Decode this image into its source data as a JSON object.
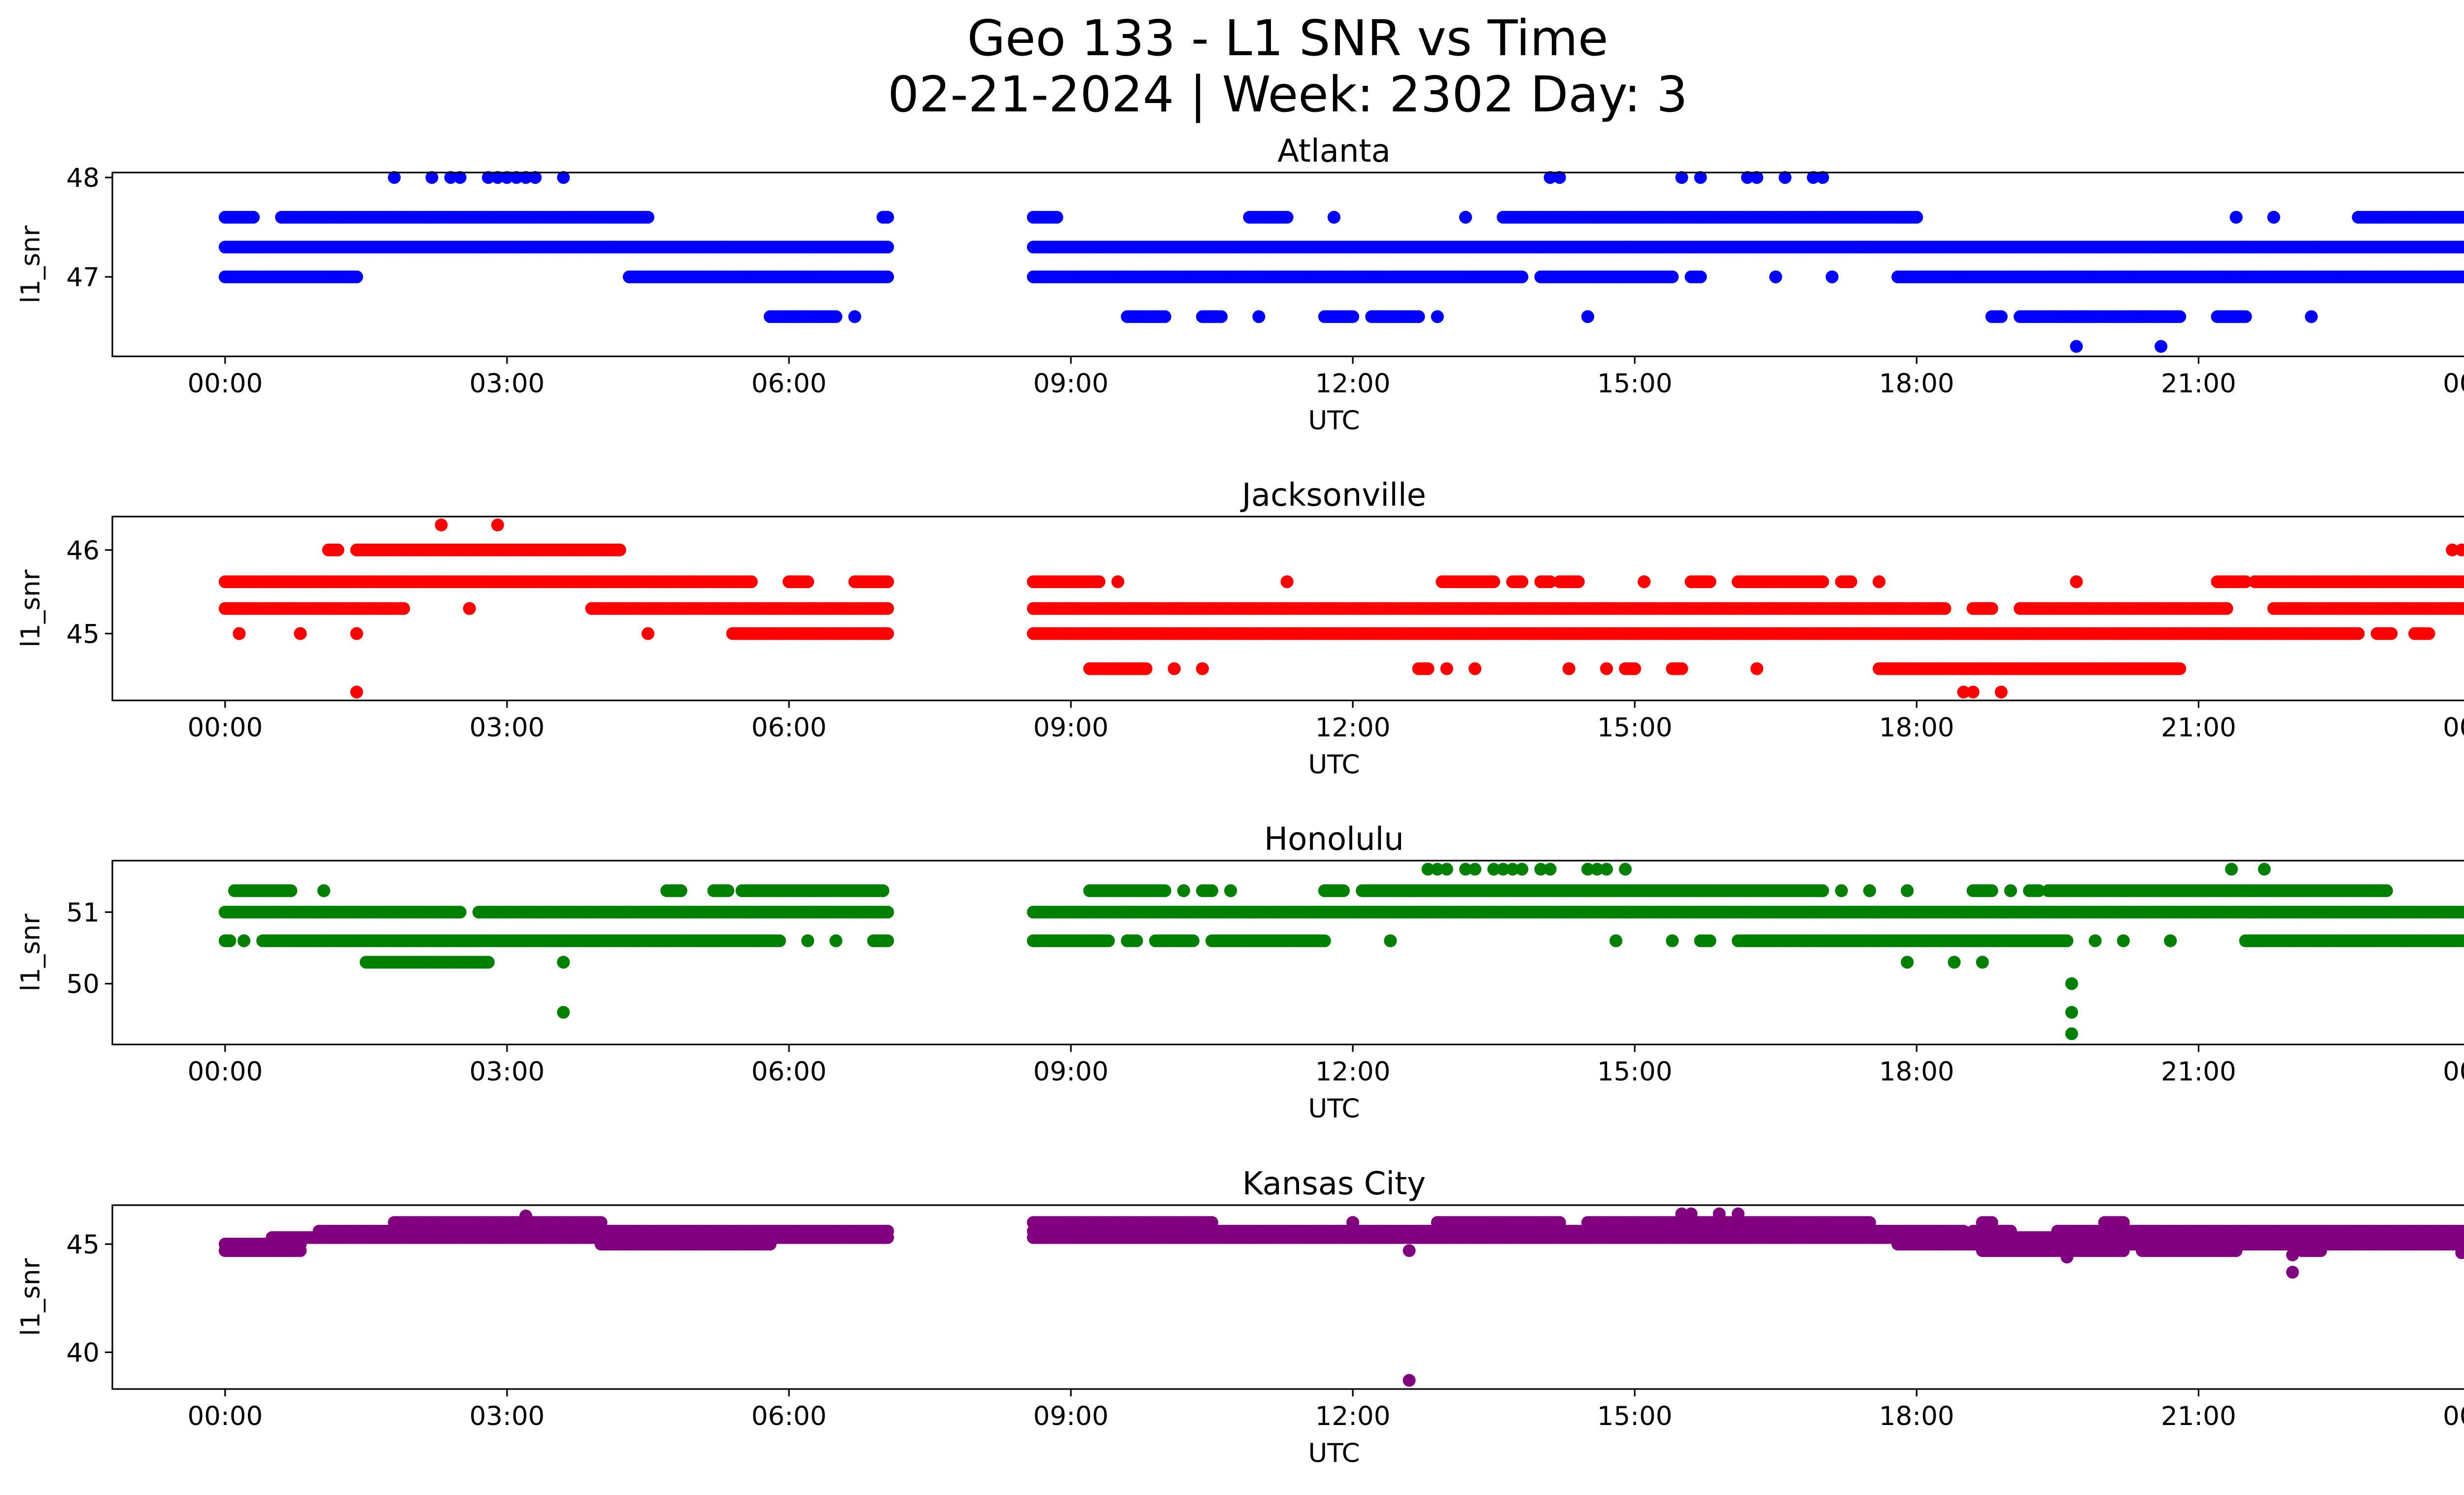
{
  "figure": {
    "title_line1": "Geo 133 - L1 SNR vs Time",
    "title_line2": "02-21-2024 | Week: 2302 Day: 3"
  },
  "chart_data": [
    {
      "type": "scatter",
      "title": "Atlanta",
      "xlabel": "UTC",
      "ylabel": "l1_snr",
      "color": "#0000ff",
      "xlim": [
        "-01:12",
        "24:48"
      ],
      "ylim": [
        46.2,
        48.05
      ],
      "xticks": [
        "00:00",
        "03:00",
        "06:00",
        "09:00",
        "12:00",
        "15:00",
        "18:00",
        "21:00",
        "00:00"
      ],
      "yticks": [
        47,
        48
      ],
      "bands": [
        {
          "y": 47.6,
          "ranges": [
            [
              0.0,
              0.3
            ],
            [
              0.6,
              4.5
            ],
            [
              7.0,
              7.05
            ],
            [
              8.6,
              8.85
            ],
            [
              10.9,
              11.3
            ],
            [
              11.8,
              11.8
            ],
            [
              13.2,
              13.2
            ],
            [
              13.6,
              18.0
            ],
            [
              21.4,
              21.4
            ],
            [
              21.8,
              21.8
            ],
            [
              22.7,
              23.9
            ]
          ]
        },
        {
          "y": 47.3,
          "ranges": [
            [
              0.0,
              7.05
            ],
            [
              8.6,
              24.0
            ]
          ]
        },
        {
          "y": 47.0,
          "ranges": [
            [
              0.0,
              1.4
            ],
            [
              4.3,
              7.05
            ],
            [
              8.6,
              13.8
            ],
            [
              14.0,
              15.4
            ],
            [
              15.6,
              15.7
            ],
            [
              16.5,
              16.5
            ],
            [
              17.1,
              17.1
            ],
            [
              17.8,
              23.9
            ]
          ]
        },
        {
          "y": 46.6,
          "ranges": [
            [
              5.8,
              6.5
            ],
            [
              6.7,
              6.7
            ],
            [
              9.6,
              10.0
            ],
            [
              10.4,
              10.6
            ],
            [
              11.0,
              11.0
            ],
            [
              11.7,
              12.0
            ],
            [
              12.2,
              12.7
            ],
            [
              12.9,
              12.9
            ],
            [
              14.5,
              14.5
            ],
            [
              18.8,
              18.9
            ],
            [
              19.1,
              20.8
            ],
            [
              21.2,
              21.5
            ],
            [
              22.2,
              22.2
            ]
          ]
        }
      ],
      "points": [
        [
          1.8,
          48.0
        ],
        [
          2.2,
          48.0
        ],
        [
          2.4,
          48.0
        ],
        [
          2.5,
          48.0
        ],
        [
          2.8,
          48.0
        ],
        [
          2.9,
          48.0
        ],
        [
          3.0,
          48.0
        ],
        [
          3.1,
          48.0
        ],
        [
          3.2,
          48.0
        ],
        [
          3.3,
          48.0
        ],
        [
          3.6,
          48.0
        ],
        [
          14.1,
          48.0
        ],
        [
          14.2,
          48.0
        ],
        [
          15.5,
          48.0
        ],
        [
          15.7,
          48.0
        ],
        [
          16.2,
          48.0
        ],
        [
          16.3,
          48.0
        ],
        [
          16.6,
          48.0
        ],
        [
          16.9,
          48.0
        ],
        [
          17.0,
          48.0
        ],
        [
          19.7,
          46.3
        ],
        [
          20.6,
          46.3
        ]
      ]
    },
    {
      "type": "scatter",
      "title": "Jacksonville",
      "xlabel": "UTC",
      "ylabel": "l1_snr",
      "color": "#ff0000",
      "xlim": [
        "-01:12",
        "24:48"
      ],
      "ylim": [
        44.2,
        46.4
      ],
      "xticks": [
        "00:00",
        "03:00",
        "06:00",
        "09:00",
        "12:00",
        "15:00",
        "18:00",
        "21:00",
        "00:00"
      ],
      "yticks": [
        45,
        46
      ],
      "bands": [
        {
          "y": 46.0,
          "ranges": [
            [
              1.1,
              1.2
            ],
            [
              1.4,
              4.2
            ]
          ]
        },
        {
          "y": 45.62,
          "ranges": [
            [
              0.0,
              5.6
            ],
            [
              6.0,
              6.2
            ],
            [
              6.7,
              7.05
            ],
            [
              8.6,
              9.3
            ],
            [
              9.5,
              9.5
            ],
            [
              11.3,
              11.3
            ],
            [
              12.95,
              13.5
            ],
            [
              13.7,
              13.8
            ],
            [
              14.0,
              14.1
            ],
            [
              14.2,
              14.4
            ],
            [
              15.1,
              15.1
            ],
            [
              15.6,
              15.8
            ],
            [
              16.1,
              17.0
            ],
            [
              17.2,
              17.3
            ],
            [
              17.6,
              17.6
            ],
            [
              19.7,
              19.7
            ],
            [
              21.2,
              21.5
            ],
            [
              21.6,
              24.0
            ]
          ]
        },
        {
          "y": 45.3,
          "ranges": [
            [
              0.0,
              1.9
            ],
            [
              2.6,
              2.6
            ],
            [
              3.9,
              7.05
            ],
            [
              8.6,
              18.3
            ],
            [
              18.6,
              18.8
            ],
            [
              19.1,
              21.3
            ],
            [
              21.8,
              24.0
            ]
          ]
        },
        {
          "y": 45.0,
          "ranges": [
            [
              0.15,
              0.15
            ],
            [
              0.8,
              0.8
            ],
            [
              1.4,
              1.4
            ],
            [
              4.5,
              4.5
            ],
            [
              5.4,
              7.05
            ],
            [
              8.6,
              22.7
            ],
            [
              22.9,
              23.05
            ],
            [
              23.3,
              23.45
            ]
          ]
        },
        {
          "y": 44.58,
          "ranges": [
            [
              9.2,
              9.8
            ],
            [
              10.1,
              10.1
            ],
            [
              10.4,
              10.4
            ],
            [
              12.7,
              12.8
            ],
            [
              13.0,
              13.0
            ],
            [
              13.3,
              13.3
            ],
            [
              14.3,
              14.3
            ],
            [
              14.7,
              14.7
            ],
            [
              14.9,
              15.0
            ],
            [
              15.4,
              15.5
            ],
            [
              16.3,
              16.3
            ],
            [
              17.6,
              20.8
            ]
          ]
        }
      ],
      "points": [
        [
          2.3,
          46.3
        ],
        [
          2.9,
          46.3
        ],
        [
          1.4,
          44.3
        ],
        [
          18.5,
          44.3
        ],
        [
          18.6,
          44.3
        ],
        [
          18.9,
          44.3
        ],
        [
          23.7,
          46.0
        ],
        [
          23.8,
          46.0
        ],
        [
          23.9,
          46.0
        ]
      ]
    },
    {
      "type": "scatter",
      "title": "Honolulu",
      "xlabel": "UTC",
      "ylabel": "l1_snr",
      "color": "#008000",
      "xlim": [
        "-01:12",
        "24:48"
      ],
      "ylim": [
        49.15,
        51.72
      ],
      "xticks": [
        "00:00",
        "03:00",
        "06:00",
        "09:00",
        "12:00",
        "15:00",
        "18:00",
        "21:00",
        "00:00"
      ],
      "yticks": [
        50,
        51
      ],
      "bands": [
        {
          "y": 51.3,
          "ranges": [
            [
              0.1,
              0.7
            ],
            [
              1.05,
              1.05
            ],
            [
              4.7,
              4.85
            ],
            [
              5.2,
              5.35
            ],
            [
              5.5,
              7.0
            ],
            [
              9.2,
              10.0
            ],
            [
              10.2,
              10.2
            ],
            [
              10.4,
              10.5
            ],
            [
              10.7,
              10.7
            ],
            [
              11.7,
              11.9
            ],
            [
              12.1,
              17.0
            ],
            [
              17.2,
              17.2
            ],
            [
              17.5,
              17.5
            ],
            [
              17.9,
              17.9
            ],
            [
              18.6,
              18.8
            ],
            [
              19.0,
              19.0
            ],
            [
              19.2,
              19.3
            ],
            [
              19.4,
              23.0
            ]
          ]
        },
        {
          "y": 51.0,
          "ranges": [
            [
              0.0,
              2.5
            ],
            [
              2.7,
              7.05
            ],
            [
              8.6,
              24.0
            ]
          ]
        },
        {
          "y": 50.6,
          "ranges": [
            [
              0.0,
              0.05
            ],
            [
              0.2,
              0.2
            ],
            [
              0.4,
              5.9
            ],
            [
              6.2,
              6.2
            ],
            [
              6.5,
              6.5
            ],
            [
              6.9,
              7.05
            ],
            [
              8.6,
              9.4
            ],
            [
              9.6,
              9.7
            ],
            [
              9.9,
              10.3
            ],
            [
              10.5,
              11.7
            ],
            [
              12.4,
              12.4
            ],
            [
              14.8,
              14.8
            ],
            [
              15.4,
              15.4
            ],
            [
              15.7,
              15.8
            ],
            [
              16.1,
              19.6
            ],
            [
              19.9,
              19.9
            ],
            [
              20.2,
              20.2
            ],
            [
              20.7,
              20.7
            ],
            [
              21.5,
              24.0
            ]
          ]
        },
        {
          "y": 50.3,
          "ranges": [
            [
              1.5,
              2.8
            ],
            [
              3.6,
              3.6
            ],
            [
              17.9,
              17.9
            ],
            [
              18.4,
              18.4
            ],
            [
              18.7,
              18.7
            ]
          ]
        }
      ],
      "points": [
        [
          3.6,
          49.6
        ],
        [
          19.65,
          50.0
        ],
        [
          19.65,
          49.6
        ],
        [
          19.65,
          49.3
        ],
        [
          12.8,
          51.6
        ],
        [
          12.9,
          51.6
        ],
        [
          13.0,
          51.6
        ],
        [
          13.2,
          51.6
        ],
        [
          13.3,
          51.6
        ],
        [
          13.5,
          51.6
        ],
        [
          13.6,
          51.6
        ],
        [
          13.7,
          51.6
        ],
        [
          13.8,
          51.6
        ],
        [
          14.0,
          51.6
        ],
        [
          14.1,
          51.6
        ],
        [
          14.5,
          51.6
        ],
        [
          14.6,
          51.6
        ],
        [
          14.7,
          51.6
        ],
        [
          14.9,
          51.6
        ],
        [
          21.35,
          51.6
        ],
        [
          21.7,
          51.6
        ]
      ]
    },
    {
      "type": "scatter",
      "title": "Kansas City",
      "xlabel": "UTC",
      "ylabel": "l1_snr",
      "color": "#800080",
      "xlim": [
        "-01:12",
        "24:48"
      ],
      "ylim": [
        38.3,
        46.8
      ],
      "xticks": [
        "00:00",
        "03:00",
        "06:00",
        "09:00",
        "12:00",
        "15:00",
        "18:00",
        "21:00",
        "00:00"
      ],
      "yticks": [
        40,
        45
      ],
      "bands": [
        {
          "y": 46.0,
          "ranges": [
            [
              1.8,
              4.0
            ],
            [
              8.6,
              10.5
            ],
            [
              12.0,
              12.0
            ],
            [
              12.9,
              14.2
            ],
            [
              14.5,
              17.5
            ],
            [
              18.7,
              18.8
            ],
            [
              20.0,
              20.2
            ]
          ]
        },
        {
          "y": 45.6,
          "ranges": [
            [
              1.0,
              7.05
            ],
            [
              8.6,
              18.5
            ],
            [
              18.6,
              19.0
            ],
            [
              19.5,
              24.0
            ]
          ]
        },
        {
          "y": 45.3,
          "ranges": [
            [
              0.5,
              7.05
            ],
            [
              8.6,
              24.0
            ]
          ]
        },
        {
          "y": 45.0,
          "ranges": [
            [
              0.0,
              0.8
            ],
            [
              4.0,
              5.8
            ],
            [
              17.8,
              24.0
            ]
          ]
        },
        {
          "y": 44.7,
          "ranges": [
            [
              0.0,
              0.8
            ],
            [
              18.7,
              20.2
            ],
            [
              20.4,
              21.4
            ],
            [
              22.1,
              22.3
            ]
          ]
        }
      ],
      "points": [
        [
          3.2,
          46.3
        ],
        [
          15.5,
          46.4
        ],
        [
          15.6,
          46.4
        ],
        [
          15.9,
          46.4
        ],
        [
          16.1,
          46.4
        ],
        [
          12.6,
          44.7
        ],
        [
          19.6,
          44.4
        ],
        [
          22.0,
          44.5
        ],
        [
          23.8,
          44.6
        ],
        [
          12.6,
          38.7
        ],
        [
          22.0,
          43.7
        ]
      ]
    }
  ]
}
